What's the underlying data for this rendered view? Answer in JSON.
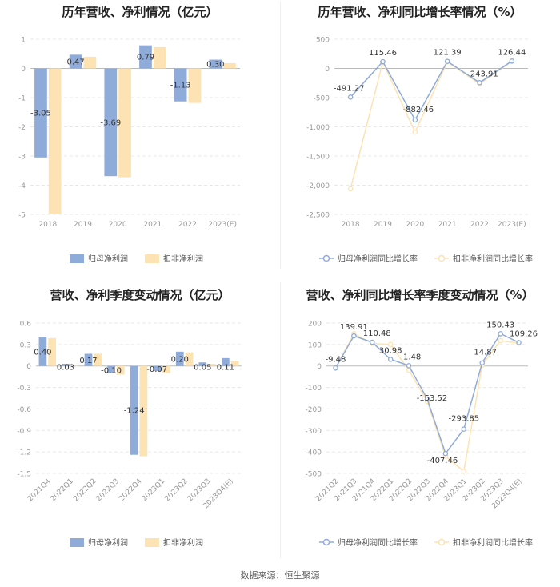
{
  "source_label": "数据来源：恒生聚源",
  "colors": {
    "primary": "#8fabd9",
    "secondary": "#fde3b3",
    "axis": "#999999",
    "grid": "#e8e8e8",
    "label": "#333333"
  },
  "chart_data": [
    {
      "id": "annual-profit",
      "type": "bar",
      "title": "历年营收、净利情况（亿元）",
      "categories": [
        "2018",
        "2019",
        "2020",
        "2021",
        "2022",
        "2023(E)"
      ],
      "ylim": [
        -5,
        1
      ],
      "yticks": [
        1,
        0,
        -1,
        -2,
        -3,
        -4,
        -5
      ],
      "ytick_labels": [
        "1",
        "0",
        "-1",
        "-2",
        "-3",
        "-4",
        "-5"
      ],
      "series": [
        {
          "name": "归母净利润",
          "values": [
            -3.05,
            0.47,
            -3.69,
            0.79,
            -1.13,
            0.3
          ],
          "labels": [
            "-3.05",
            "0.47",
            "-3.69",
            "0.79",
            "-1.13",
            "0.30"
          ]
        },
        {
          "name": "扣非净利润",
          "values": [
            -4.98,
            0.4,
            -3.73,
            0.73,
            -1.18,
            0.18
          ]
        }
      ]
    },
    {
      "id": "annual-growth",
      "type": "line",
      "title": "历年营收、净利同比增长率情况（%）",
      "categories": [
        "2018",
        "2019",
        "2020",
        "2021",
        "2022",
        "2023(E)"
      ],
      "ylim": [
        -2500,
        500
      ],
      "yticks": [
        500,
        0,
        -500,
        -1000,
        -1500,
        -2000,
        -2500
      ],
      "ytick_labels": [
        "500",
        "0",
        "-500",
        "-1,000",
        "-1,500",
        "-2,000",
        "-2,500"
      ],
      "series": [
        {
          "name": "归母净利润同比增长率",
          "values": [
            -491.27,
            115.46,
            -882.46,
            121.39,
            -243.91,
            126.44
          ],
          "labels": [
            "-491.27",
            "115.46",
            "-882.46",
            "121.39",
            "-243.91",
            "126.44"
          ]
        },
        {
          "name": "扣非净利润同比增长率",
          "values": [
            -2060,
            110,
            -1090,
            112,
            -265,
            120
          ]
        }
      ]
    },
    {
      "id": "quarterly-profit",
      "type": "bar",
      "title": "营收、净利季度变动情况（亿元）",
      "categories": [
        "2021Q4",
        "2022Q1",
        "2022Q2",
        "2022Q3",
        "2022Q4",
        "2023Q1",
        "2023Q2",
        "2023Q3",
        "2023Q4(E)"
      ],
      "ylim": [
        -1.5,
        0.6
      ],
      "yticks": [
        0.6,
        0.3,
        0,
        -0.3,
        -0.6,
        -0.9,
        -1.2,
        -1.5
      ],
      "ytick_labels": [
        "0.6",
        "0.3",
        "0",
        "-0.3",
        "-0.6",
        "-0.9",
        "-1.2",
        "-1.5"
      ],
      "series": [
        {
          "name": "归母净利润",
          "values": [
            0.4,
            0.03,
            0.17,
            -0.1,
            -1.24,
            -0.07,
            0.2,
            0.05,
            0.11
          ],
          "labels": [
            "0.40",
            "0.03",
            "0.17",
            "-0.10",
            "-1.24",
            "-0.07",
            "0.20",
            "0.05",
            "0.11"
          ]
        },
        {
          "name": "扣非净利润",
          "values": [
            0.39,
            0.01,
            0.17,
            -0.12,
            -1.26,
            -0.1,
            0.19,
            0.03,
            0.07
          ]
        }
      ]
    },
    {
      "id": "quarterly-growth",
      "type": "line",
      "title": "营收、净利同比增长率季度变动情况（%）",
      "categories": [
        "2021Q2",
        "2021Q3",
        "2021Q4",
        "2022Q1",
        "2022Q2",
        "2022Q3",
        "2022Q4",
        "2023Q1",
        "2023Q2",
        "2023Q3",
        "2023Q4(E)"
      ],
      "ylim": [
        -500,
        200
      ],
      "yticks": [
        200,
        100,
        0,
        -100,
        -200,
        -300,
        -400,
        -500
      ],
      "ytick_labels": [
        "200",
        "100",
        "0",
        "-100",
        "-200",
        "-300",
        "-400",
        "-500"
      ],
      "series": [
        {
          "name": "归母净利润同比增长率",
          "values": [
            -9.48,
            139.91,
            110.48,
            30.98,
            1.48,
            -153.52,
            -407.46,
            -293.85,
            14.87,
            150.43,
            109.26
          ],
          "labels": [
            "-9.48",
            "139.91",
            "110.48",
            "30.98",
            "1.48",
            "-153.52",
            "-407.46",
            "-293.85",
            "14.87",
            "150.43",
            "109.26"
          ]
        },
        {
          "name": "扣非净利润同比增长率",
          "values": [
            -10,
            150,
            105,
            100,
            -20,
            -165,
            -420,
            -490,
            5,
            118,
            106
          ]
        }
      ]
    }
  ]
}
